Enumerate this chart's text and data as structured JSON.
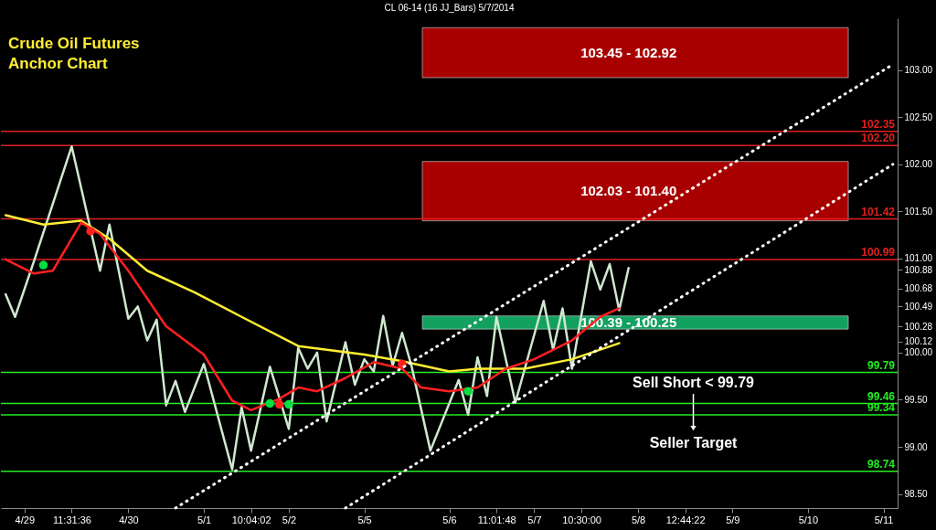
{
  "chart_data": {
    "type": "line",
    "title": "Crude Oil Futures\nAnchor Chart",
    "subtitle": "CL 06-14 (16 JJ_Bars)  5/7/2014",
    "categories": [
      null,
      null,
      "4/29",
      null,
      null,
      null,
      null,
      "11:31:36",
      null,
      null,
      null,
      null,
      null,
      "4/30",
      null,
      null,
      null,
      null,
      null,
      null,
      null,
      "5/1",
      null,
      null,
      null,
      null,
      "10:04:02",
      null,
      null,
      null,
      "5/2",
      null,
      null,
      null,
      null,
      null,
      null,
      null,
      "5/5",
      null,
      null,
      null,
      null,
      null,
      null,
      null,
      null,
      "5/6",
      null,
      null,
      null,
      null,
      "11:01:48",
      null,
      null,
      null,
      "5/7",
      null,
      null,
      null,
      null,
      "10:30:00",
      null,
      null,
      null,
      null,
      null,
      "5/8",
      null,
      null,
      null,
      null,
      "12:44:22",
      null,
      null,
      null,
      null,
      "5/9",
      null,
      null,
      null,
      null,
      null,
      null,
      null,
      "5/10",
      null,
      null,
      null,
      null,
      null,
      null,
      null,
      "5/11",
      null
    ],
    "ylim": [
      98.35,
      103.55
    ],
    "yticks": [
      {
        "value": 98.5,
        "label": "98.50"
      },
      {
        "value": 99,
        "label": "99.00"
      },
      {
        "value": 99.5,
        "label": "99.50"
      },
      {
        "value": 100,
        "label": "100.00"
      },
      100.12,
      100.28,
      100.49,
      100.68,
      100.88,
      {
        "value": 101,
        "label": "101.00"
      },
      {
        "value": 101.5,
        "label": "101.50"
      },
      {
        "value": 102,
        "label": "102.00"
      },
      {
        "value": 102.5,
        "label": "102.50"
      },
      {
        "value": 103,
        "label": "103.00"
      }
    ],
    "series": [
      {
        "color": "#cfe8cf",
        "values": [
          100.62,
          100.38,
          null,
          100.97,
          null,
          null,
          null,
          102.19,
          null,
          null,
          100.87,
          101.36,
          null,
          100.36,
          100.49,
          100.13,
          100.35,
          99.44,
          99.7,
          99.37,
          null,
          99.88,
          null,
          null,
          98.76,
          99.42,
          98.96,
          null,
          99.85,
          null,
          99.19,
          100.05,
          99.83,
          100.0,
          99.27,
          null,
          100.11,
          99.66,
          99.93,
          99.8,
          100.39,
          99.86,
          100.21,
          99.86,
          null,
          98.96,
          null,
          null,
          99.71,
          99.34,
          99.95,
          99.54,
          100.38,
          null,
          99.47,
          null,
          null,
          100.55,
          100.03,
          100.47,
          99.83,
          null,
          100.97,
          100.67,
          100.94,
          100.45,
          100.9,
          null,
          null,
          null,
          null,
          null,
          null,
          null,
          null,
          null,
          null,
          null,
          null,
          null,
          null,
          null,
          null,
          null,
          null,
          null,
          null,
          null,
          null,
          null,
          null,
          null,
          null,
          null,
          null
        ]
      },
      {
        "color": "#ffee33",
        "values": [
          101.46,
          null,
          null,
          null,
          101.36,
          null,
          null,
          null,
          101.4,
          null,
          null,
          101.21,
          null,
          null,
          null,
          100.87,
          null,
          null,
          null,
          null,
          100.64,
          null,
          null,
          null,
          null,
          100.38,
          null,
          null,
          null,
          null,
          null,
          100.07,
          null,
          null,
          null,
          null,
          null,
          null,
          99.98,
          null,
          null,
          null,
          99.91,
          null,
          null,
          null,
          null,
          99.8,
          null,
          null,
          99.83,
          null,
          null,
          null,
          null,
          99.83,
          null,
          null,
          null,
          null,
          99.93,
          null,
          null,
          null,
          null,
          100.1,
          null,
          null,
          null,
          null,
          null,
          null,
          null,
          null,
          null,
          null,
          null,
          null,
          null,
          null,
          null,
          null,
          null,
          null,
          null,
          null,
          null,
          null,
          null,
          null,
          null,
          null,
          null,
          null,
          null
        ]
      },
      {
        "color": "#ff2020",
        "values": [
          100.99,
          null,
          null,
          100.84,
          null,
          100.87,
          null,
          null,
          101.38,
          null,
          101.26,
          null,
          null,
          100.87,
          null,
          null,
          null,
          100.28,
          null,
          null,
          null,
          99.98,
          null,
          null,
          99.49,
          null,
          99.39,
          null,
          null,
          99.51,
          null,
          99.63,
          null,
          99.59,
          null,
          null,
          99.73,
          null,
          null,
          99.9,
          null,
          null,
          99.83,
          null,
          99.63,
          null,
          null,
          99.59,
          null,
          null,
          99.63,
          null,
          null,
          99.83,
          null,
          null,
          99.93,
          null,
          null,
          null,
          100.13,
          null,
          null,
          100.38,
          null,
          100.47,
          null,
          null,
          null,
          null,
          null,
          null,
          null,
          null,
          null,
          null,
          null,
          null,
          null,
          null,
          null,
          null,
          null,
          null,
          null,
          null,
          null,
          null,
          null,
          null,
          null,
          null,
          null,
          null,
          null
        ]
      },
      {
        "type": "scatter",
        "color": "#00e040",
        "values": [
          null,
          null,
          null,
          null,
          100.93,
          null,
          null,
          null,
          null,
          null,
          null,
          null,
          null,
          null,
          null,
          null,
          null,
          null,
          null,
          null,
          null,
          null,
          null,
          null,
          null,
          null,
          null,
          null,
          99.46,
          null,
          99.45,
          null,
          null,
          null,
          null,
          null,
          null,
          null,
          null,
          null,
          null,
          null,
          null,
          null,
          null,
          null,
          null,
          null,
          null,
          99.59,
          null,
          null,
          null,
          null,
          null,
          null,
          null,
          null,
          null,
          null,
          null,
          null,
          null,
          null,
          null,
          null,
          null,
          null,
          null,
          null,
          null,
          null,
          null,
          null,
          null,
          null,
          null,
          null,
          null,
          null,
          null,
          null,
          null,
          null,
          null,
          null,
          null,
          null,
          null,
          null,
          null,
          null,
          null,
          null,
          null
        ]
      },
      {
        "type": "scatter",
        "color": "#ff2020",
        "values": [
          null,
          null,
          null,
          null,
          null,
          null,
          null,
          null,
          null,
          101.29,
          null,
          null,
          null,
          null,
          null,
          null,
          null,
          null,
          null,
          null,
          null,
          null,
          null,
          null,
          null,
          null,
          null,
          null,
          null,
          99.45,
          null,
          null,
          null,
          null,
          null,
          null,
          null,
          null,
          null,
          null,
          null,
          null,
          99.88,
          null,
          null,
          null,
          null,
          null,
          null,
          null,
          null,
          null,
          null,
          null,
          null,
          null,
          null,
          null,
          null,
          null,
          null,
          null,
          null,
          null,
          null,
          null,
          null,
          null,
          null,
          null,
          null,
          null,
          null,
          null,
          null,
          null,
          null,
          null,
          null,
          null,
          null,
          null,
          null,
          null,
          null,
          null,
          null,
          null,
          null,
          null,
          null,
          null,
          null,
          null,
          null
        ]
      },
      {
        "color": "#ffffff",
        "line_style": "dotted",
        "values": [
          null,
          null,
          null,
          null,
          null,
          null,
          null,
          null,
          null,
          null,
          null,
          null,
          null,
          null,
          null,
          null,
          null,
          null,
          98.35,
          null,
          null,
          null,
          null,
          null,
          null,
          null,
          null,
          null,
          null,
          null,
          null,
          null,
          null,
          null,
          null,
          null,
          null,
          null,
          null,
          null,
          null,
          null,
          null,
          null,
          null,
          null,
          null,
          null,
          null,
          null,
          null,
          null,
          null,
          null,
          null,
          null,
          null,
          null,
          null,
          null,
          null,
          null,
          null,
          null,
          null,
          null,
          null,
          null,
          null,
          null,
          null,
          null,
          null,
          null,
          null,
          null,
          null,
          null,
          null,
          null,
          null,
          null,
          null,
          null,
          null,
          null,
          null,
          null,
          null,
          null,
          null,
          null,
          null,
          null,
          103.06
        ]
      },
      {
        "color": "#ffffff",
        "line_style": "dotted",
        "values": [
          null,
          null,
          null,
          null,
          null,
          null,
          null,
          null,
          null,
          null,
          null,
          null,
          null,
          null,
          null,
          null,
          null,
          null,
          null,
          null,
          null,
          null,
          null,
          null,
          null,
          null,
          null,
          null,
          null,
          null,
          null,
          null,
          null,
          null,
          null,
          null,
          98.35,
          null,
          null,
          null,
          null,
          null,
          null,
          null,
          null,
          null,
          null,
          null,
          null,
          null,
          null,
          null,
          null,
          null,
          null,
          null,
          null,
          null,
          null,
          null,
          null,
          null,
          null,
          null,
          null,
          null,
          null,
          null,
          null,
          null,
          null,
          null,
          null,
          null,
          null,
          null,
          null,
          null,
          null,
          null,
          null,
          null,
          null,
          null,
          null,
          null,
          null,
          null,
          null,
          null,
          null,
          null,
          null,
          null,
          102.0
        ]
      }
    ],
    "bands": [
      {
        "axis": "y",
        "from": 102.92,
        "to": 103.45,
        "label": "103.45 - 102.92",
        "color": "#a80000"
      },
      {
        "axis": "y",
        "from": 101.4,
        "to": 102.03,
        "label": "102.03 - 101.40",
        "color": "#a80000"
      },
      {
        "axis": "y",
        "from": 100.25,
        "to": 100.39,
        "label": "100.39 - 100.25",
        "color": "#12a060"
      }
    ],
    "ref_lines": [
      {
        "axis": "y",
        "value": 102.35,
        "label": "102.35",
        "color": "#e02020"
      },
      {
        "axis": "y",
        "value": 102.2,
        "label": "102.20",
        "color": "#e02020"
      },
      {
        "axis": "y",
        "value": 101.42,
        "label": "101.42",
        "color": "#e02020"
      },
      {
        "axis": "y",
        "value": 100.99,
        "label": "100.99",
        "color": "#e02020"
      },
      {
        "axis": "y",
        "value": 99.79,
        "label": "99.79",
        "color": "#22ee22"
      },
      {
        "axis": "y",
        "value": 99.46,
        "label": "99.46",
        "color": "#22ee22"
      },
      {
        "axis": "y",
        "value": 99.34,
        "label": "99.34",
        "color": "#22ee22"
      },
      {
        "axis": "y",
        "value": 98.74,
        "label": "98.74",
        "color": "#22ee22"
      }
    ],
    "annotations": [
      "Sell Short < 99.79",
      "Seller Target"
    ]
  }
}
